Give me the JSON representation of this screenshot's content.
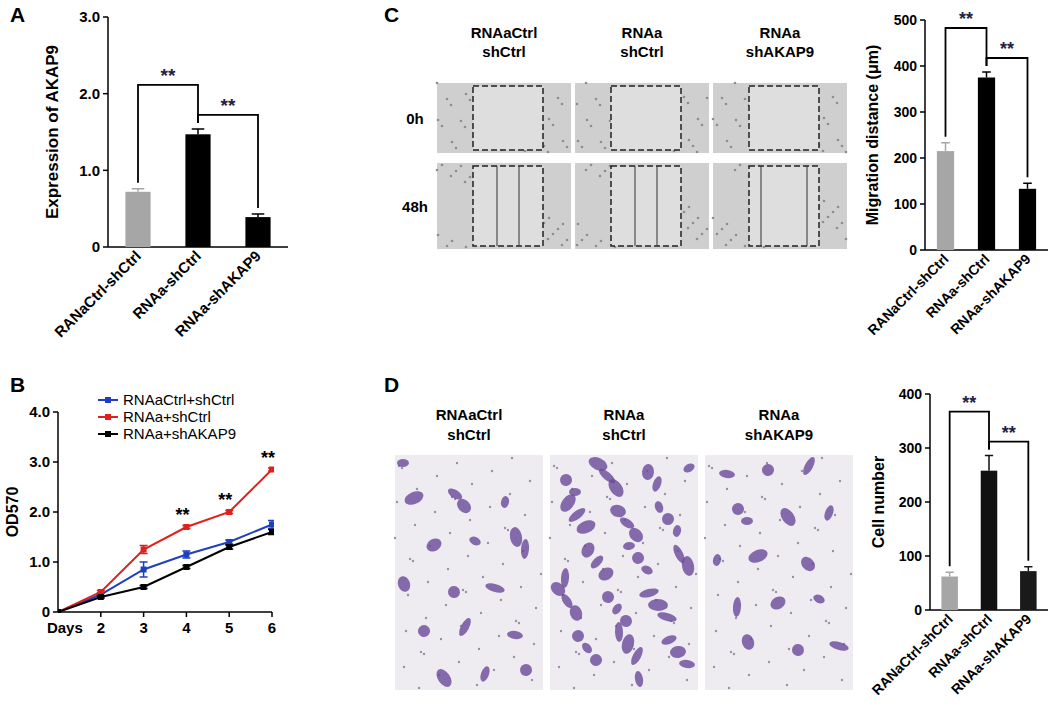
{
  "chart_data": [
    {
      "type": "bar",
      "panel": "A",
      "y_label": "Expression of AKAP9",
      "categories": [
        "RANaCtrl-shCtrl",
        "RNAa-shCtrl",
        "RNAa-shAKAP9"
      ],
      "values": [
        0.72,
        1.47,
        0.39
      ],
      "errors": [
        0.04,
        0.07,
        0.04
      ],
      "colors": [
        "#a6a6a6",
        "#000000",
        "#000000"
      ],
      "ylim": [
        0,
        3
      ],
      "yticks": [
        0,
        {
          "value": 1,
          "label": "1.0"
        },
        {
          "value": 2,
          "label": "2.0"
        },
        {
          "value": 3,
          "label": "3.0"
        }
      ],
      "annotations": [
        {
          "text": "**",
          "from": 0,
          "to": 1
        },
        {
          "text": "**",
          "from": 1,
          "to": 2
        }
      ]
    },
    {
      "type": "line",
      "panel": "B",
      "x_label": "Days",
      "y_label": "OD570",
      "x": [
        1,
        2,
        3,
        4,
        5,
        6
      ],
      "xlim": [
        1,
        6
      ],
      "xticks": [
        2,
        3,
        4,
        5,
        6
      ],
      "ylim": [
        0,
        4
      ],
      "yticks": [
        0,
        {
          "value": 1,
          "label": "1.0"
        },
        {
          "value": 2,
          "label": "2.0"
        },
        {
          "value": 3,
          "label": "3.0"
        },
        {
          "value": 4,
          "label": "4.0"
        }
      ],
      "legend": "upper left",
      "marker": "square",
      "series": [
        {
          "name": "RNAaCtrl+shCtrl",
          "color": "#1f3fbf",
          "values": [
            0,
            0.35,
            0.85,
            1.15,
            1.4,
            1.75
          ],
          "errors": [
            0,
            0.03,
            0.15,
            0.07,
            0.04,
            0.08
          ]
        },
        {
          "name": "RNAa+shCtrl",
          "color": "#e0201c",
          "values": [
            0,
            0.4,
            1.25,
            1.7,
            2.0,
            2.85
          ],
          "errors": [
            0,
            0.03,
            0.08,
            0.03,
            0.03,
            0.03
          ]
        },
        {
          "name": "RNAa+shAKAP9",
          "color": "#000000",
          "values": [
            0,
            0.3,
            0.5,
            0.9,
            1.3,
            1.6
          ],
          "errors": [
            0,
            0.02,
            0.03,
            0.03,
            0.04,
            0.05
          ]
        }
      ],
      "annotations": [
        {
          "text": "**",
          "x": 4
        },
        {
          "text": "**",
          "x": 5
        },
        {
          "text": "**",
          "x": 6
        }
      ]
    },
    {
      "type": "bar",
      "y_label": "Migration distance (μm)",
      "categories": [
        "RANaCtrl-shCtrl",
        "RNAa-shCtrl",
        "RNAa-shAKAP9"
      ],
      "values": [
        215,
        375,
        133
      ],
      "errors": [
        18,
        12,
        12
      ],
      "colors": [
        "#a6a6a6",
        "#000000",
        "#000000"
      ],
      "ylim": [
        0,
        500
      ],
      "yticks": [
        0,
        100,
        200,
        300,
        400,
        500
      ],
      "annotations": [
        {
          "text": "**",
          "from": 0,
          "to": 1
        },
        {
          "text": "**",
          "from": 1,
          "to": 2
        }
      ]
    },
    {
      "type": "bar",
      "y_label": "Cell number",
      "categories": [
        "RANaCtrl-shCtrl",
        "RNAa-shCtrl",
        "RNAa-shAKAP9"
      ],
      "values": [
        62,
        258,
        72
      ],
      "errors": [
        8,
        28,
        8
      ],
      "colors": [
        "#a6a6a6",
        "#111111",
        "#1a1a1a"
      ],
      "ylim": [
        0,
        400
      ],
      "yticks": [
        0,
        100,
        200,
        300,
        400
      ],
      "annotations": [
        {
          "text": "**",
          "from": 0,
          "to": 1
        },
        {
          "text": "**",
          "from": 1,
          "to": 2
        }
      ]
    }
  ],
  "images": [
    {
      "panel": "C",
      "columns": [
        [
          "RNAaCtrl",
          "shCtrl"
        ],
        [
          "RNAa",
          "shCtrl"
        ],
        [
          "RNAa",
          "shAKAP9"
        ]
      ],
      "rows": [
        "0h",
        "48h"
      ]
    },
    {
      "panel": "D",
      "columns": [
        [
          "RNAaCtrl",
          "shCtrl"
        ],
        [
          "RNAa",
          "shCtrl"
        ],
        [
          "RNAa",
          "shAKAP9"
        ]
      ]
    }
  ]
}
